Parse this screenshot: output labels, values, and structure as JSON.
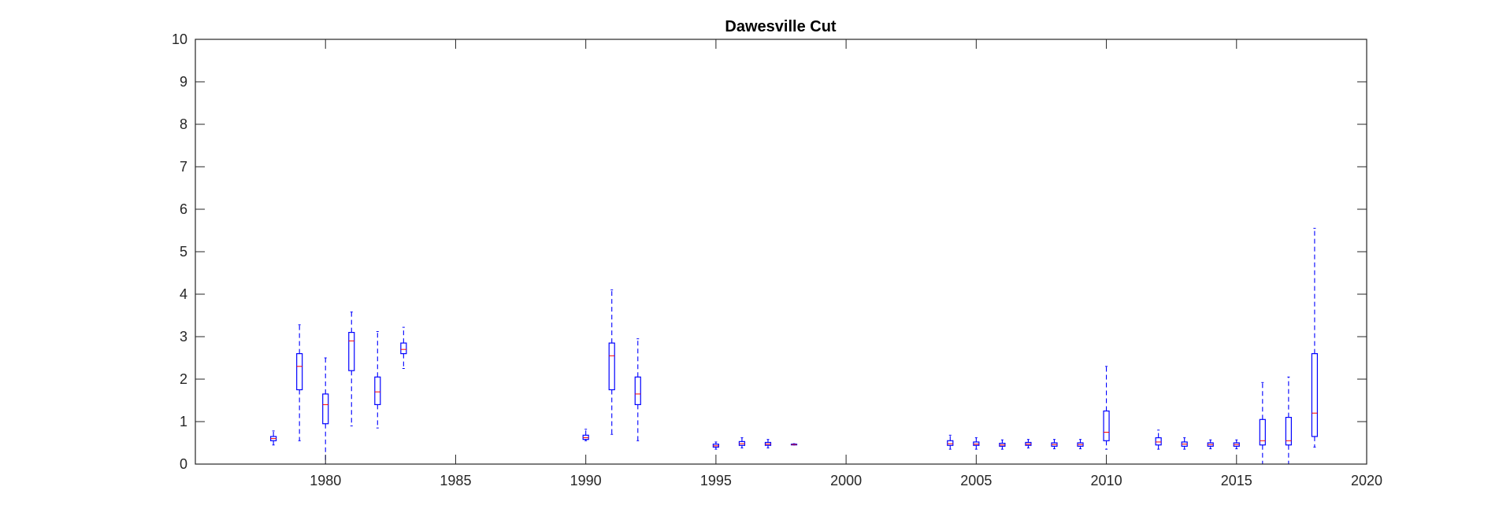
{
  "chart_data": {
    "type": "boxplot",
    "title": "Dawesville Cut",
    "xlabel": "",
    "ylabel": "",
    "xlim": [
      1975,
      2020
    ],
    "ylim": [
      0,
      10
    ],
    "xticks": [
      1980,
      1985,
      1990,
      1995,
      2000,
      2005,
      2010,
      2015,
      2020
    ],
    "yticks": [
      0,
      1,
      2,
      3,
      4,
      5,
      6,
      7,
      8,
      9,
      10
    ],
    "grid": false,
    "color": "#0000ff",
    "boxes": [
      {
        "x": 1978,
        "whisker_low": 0.45,
        "q1": 0.55,
        "median": 0.6,
        "q3": 0.65,
        "whisker_high": 0.78
      },
      {
        "x": 1979,
        "whisker_low": 0.55,
        "q1": 1.75,
        "median": 2.3,
        "q3": 2.6,
        "whisker_high": 3.28
      },
      {
        "x": 1980,
        "whisker_low": 0.0,
        "q1": 0.95,
        "median": 1.4,
        "q3": 1.65,
        "whisker_high": 2.5
      },
      {
        "x": 1981,
        "whisker_low": 0.9,
        "q1": 2.2,
        "median": 2.9,
        "q3": 3.1,
        "whisker_high": 3.58
      },
      {
        "x": 1982,
        "whisker_low": 0.85,
        "q1": 1.4,
        "median": 1.7,
        "q3": 2.05,
        "whisker_high": 3.12
      },
      {
        "x": 1983,
        "whisker_low": 2.25,
        "q1": 2.6,
        "median": 2.7,
        "q3": 2.85,
        "whisker_high": 3.22
      },
      {
        "x": 1990,
        "whisker_low": 0.55,
        "q1": 0.58,
        "median": 0.62,
        "q3": 0.68,
        "whisker_high": 0.82
      },
      {
        "x": 1991,
        "whisker_low": 0.7,
        "q1": 1.75,
        "median": 2.55,
        "q3": 2.85,
        "whisker_high": 4.1
      },
      {
        "x": 1992,
        "whisker_low": 0.55,
        "q1": 1.4,
        "median": 1.65,
        "q3": 2.05,
        "whisker_high": 2.95
      },
      {
        "x": 1995,
        "whisker_low": 0.35,
        "q1": 0.4,
        "median": 0.43,
        "q3": 0.47,
        "whisker_high": 0.52
      },
      {
        "x": 1996,
        "whisker_low": 0.38,
        "q1": 0.44,
        "median": 0.48,
        "q3": 0.53,
        "whisker_high": 0.62
      },
      {
        "x": 1997,
        "whisker_low": 0.38,
        "q1": 0.44,
        "median": 0.47,
        "q3": 0.51,
        "whisker_high": 0.58
      },
      {
        "x": 1998,
        "whisker_low": 0.45,
        "q1": 0.46,
        "median": 0.46,
        "q3": 0.47,
        "whisker_high": 0.48
      },
      {
        "x": 2004,
        "whisker_low": 0.35,
        "q1": 0.44,
        "median": 0.48,
        "q3": 0.55,
        "whisker_high": 0.68
      },
      {
        "x": 2005,
        "whisker_low": 0.35,
        "q1": 0.44,
        "median": 0.47,
        "q3": 0.52,
        "whisker_high": 0.62
      },
      {
        "x": 2006,
        "whisker_low": 0.35,
        "q1": 0.42,
        "median": 0.45,
        "q3": 0.49,
        "whisker_high": 0.57
      },
      {
        "x": 2007,
        "whisker_low": 0.38,
        "q1": 0.44,
        "median": 0.47,
        "q3": 0.51,
        "whisker_high": 0.58
      },
      {
        "x": 2008,
        "whisker_low": 0.36,
        "q1": 0.42,
        "median": 0.46,
        "q3": 0.5,
        "whisker_high": 0.58
      },
      {
        "x": 2009,
        "whisker_low": 0.36,
        "q1": 0.42,
        "median": 0.46,
        "q3": 0.5,
        "whisker_high": 0.58
      },
      {
        "x": 2010,
        "whisker_low": 0.35,
        "q1": 0.55,
        "median": 0.75,
        "q3": 1.25,
        "whisker_high": 2.3
      },
      {
        "x": 2012,
        "whisker_low": 0.35,
        "q1": 0.45,
        "median": 0.52,
        "q3": 0.62,
        "whisker_high": 0.8
      },
      {
        "x": 2013,
        "whisker_low": 0.35,
        "q1": 0.42,
        "median": 0.47,
        "q3": 0.52,
        "whisker_high": 0.62
      },
      {
        "x": 2014,
        "whisker_low": 0.36,
        "q1": 0.42,
        "median": 0.46,
        "q3": 0.5,
        "whisker_high": 0.57
      },
      {
        "x": 2015,
        "whisker_low": 0.36,
        "q1": 0.42,
        "median": 0.46,
        "q3": 0.5,
        "whisker_high": 0.57
      },
      {
        "x": 2016,
        "whisker_low": 0.0,
        "q1": 0.45,
        "median": 0.55,
        "q3": 1.05,
        "whisker_high": 1.92
      },
      {
        "x": 2017,
        "whisker_low": 0.0,
        "q1": 0.45,
        "median": 0.55,
        "q3": 1.1,
        "whisker_high": 2.05
      },
      {
        "x": 2018,
        "whisker_low": 0.4,
        "q1": 0.65,
        "median": 1.2,
        "q3": 2.6,
        "whisker_high": 5.55
      }
    ]
  }
}
